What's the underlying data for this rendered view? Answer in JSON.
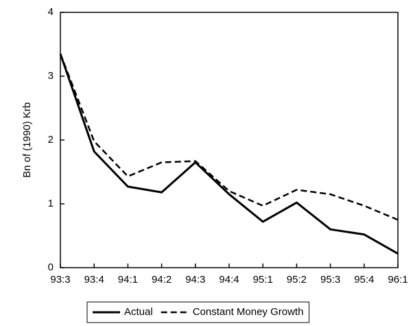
{
  "chart_data": {
    "type": "line",
    "ylabel": "Bn of (1990) Krb",
    "categories": [
      "93:3",
      "93:4",
      "94:1",
      "94:2",
      "94:3",
      "94:4",
      "95:1",
      "95:2",
      "95:3",
      "95:4",
      "96:1"
    ],
    "series": [
      {
        "name": "Actual",
        "color": "#000000",
        "style": "solid",
        "values": [
          3.35,
          1.82,
          1.27,
          1.18,
          1.65,
          1.15,
          0.72,
          1.02,
          0.6,
          0.52,
          0.22
        ]
      },
      {
        "name": "Constant Money Growth",
        "color": "#000000",
        "style": "dashed",
        "values": [
          3.35,
          1.98,
          1.43,
          1.65,
          1.67,
          1.2,
          0.97,
          1.22,
          1.15,
          0.97,
          0.75
        ]
      }
    ],
    "ylim": [
      0,
      4
    ],
    "yticks": [
      0,
      1,
      2,
      3,
      4
    ],
    "legend": "bottom"
  }
}
